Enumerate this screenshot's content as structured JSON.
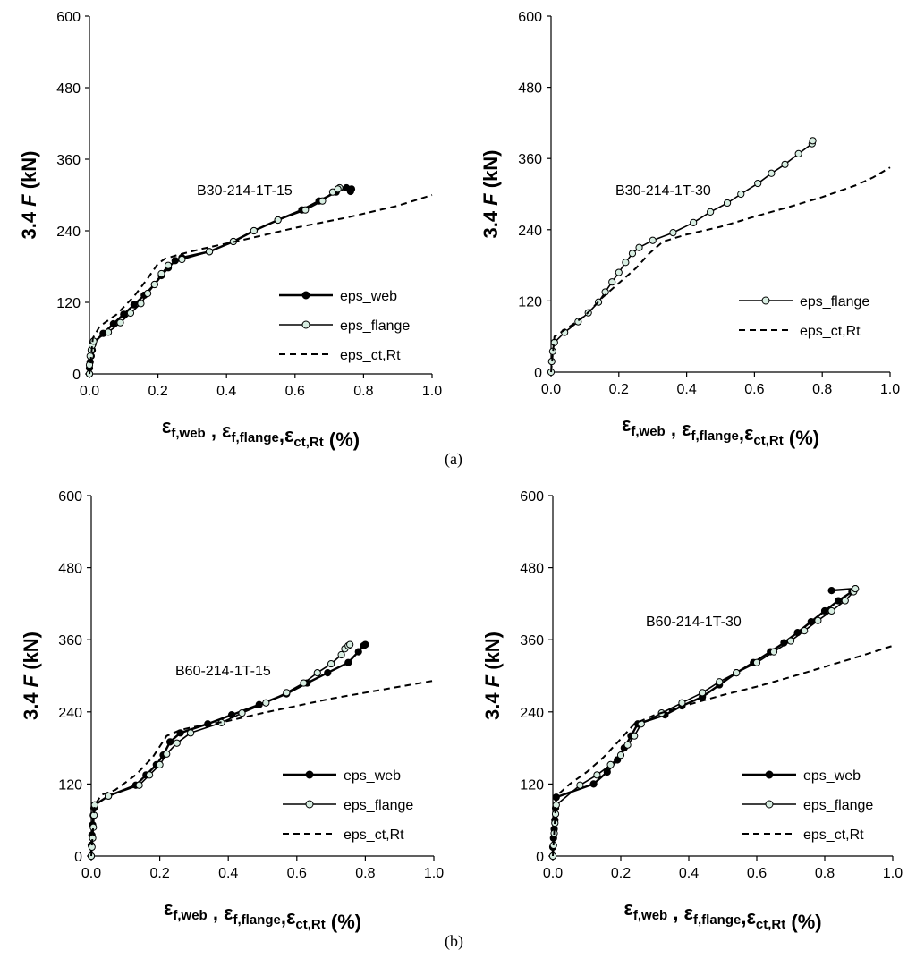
{
  "panel_labels": [
    "(a)",
    "(b)"
  ],
  "chart_data": [
    {
      "type": "line",
      "annotation": "B30-214-1T-15",
      "ylabel": "3.4 F (kN)",
      "xlabel": "ε f,web , ε f,flange , ε ct,Rt (%)",
      "xlim": [
        0,
        1.0
      ],
      "ylim": [
        0,
        600
      ],
      "xticks": [
        "0.0",
        "0.2",
        "0.4",
        "0.6",
        "0.8",
        "1.0"
      ],
      "yticks": [
        "0",
        "120",
        "240",
        "360",
        "480",
        "600"
      ],
      "legend_position": "lower-right",
      "series": [
        {
          "name": "eps_web",
          "style": "solid-black-markers",
          "x": [
            0,
            0,
            0.002,
            0.005,
            0.008,
            0.01,
            0.04,
            0.07,
            0.1,
            0.13,
            0.16,
            0.19,
            0.21,
            0.23,
            0.25,
            0.27,
            0.35,
            0.42,
            0.48,
            0.55,
            0.62,
            0.67,
            0.72,
            0.75,
            0.765,
            0.762
          ],
          "y": [
            0,
            10,
            20,
            30,
            40,
            50,
            68,
            84,
            100,
            116,
            132,
            150,
            165,
            178,
            190,
            195,
            205,
            222,
            240,
            258,
            275,
            290,
            305,
            312,
            310,
            306
          ]
        },
        {
          "name": "eps_flange",
          "style": "solid-light-markers",
          "x": [
            0,
            0,
            0.002,
            0.005,
            0.008,
            0.012,
            0.055,
            0.09,
            0.12,
            0.15,
            0.17,
            0.19,
            0.21,
            0.23,
            0.27,
            0.35,
            0.42,
            0.48,
            0.55,
            0.63,
            0.68,
            0.71,
            0.73,
            0.725
          ],
          "y": [
            0,
            15,
            30,
            40,
            48,
            55,
            70,
            86,
            102,
            118,
            135,
            150,
            168,
            182,
            192,
            205,
            222,
            240,
            258,
            275,
            290,
            305,
            312,
            310
          ]
        },
        {
          "name": "eps_ct,Rt",
          "style": "dashed",
          "x": [
            0,
            0.01,
            0.03,
            0.08,
            0.13,
            0.17,
            0.2,
            0.22,
            0.26,
            0.33,
            0.45,
            0.6,
            0.75,
            0.9,
            1.0
          ],
          "y": [
            0,
            60,
            80,
            100,
            130,
            160,
            185,
            193,
            200,
            210,
            225,
            245,
            262,
            282,
            300
          ]
        }
      ]
    },
    {
      "type": "line",
      "annotation": "B30-214-1T-30",
      "ylabel": "3.4 F (kN)",
      "xlabel": "ε f,web , ε f,flange , ε ct,Rt (%)",
      "xlim": [
        0,
        1.0
      ],
      "ylim": [
        0,
        600
      ],
      "xticks": [
        "0.0",
        "0.2",
        "0.4",
        "0.6",
        "0.8",
        "1.0"
      ],
      "yticks": [
        "0",
        "120",
        "240",
        "360",
        "480",
        "600"
      ],
      "legend_position": "lower-right",
      "series": [
        {
          "name": "eps_flange",
          "style": "solid-light-markers",
          "x": [
            0,
            0.002,
            0.005,
            0.01,
            0.04,
            0.08,
            0.11,
            0.14,
            0.16,
            0.18,
            0.2,
            0.22,
            0.24,
            0.26,
            0.3,
            0.36,
            0.42,
            0.47,
            0.52,
            0.56,
            0.61,
            0.65,
            0.69,
            0.73,
            0.77,
            0.772
          ],
          "y": [
            0,
            18,
            35,
            50,
            67,
            85,
            100,
            118,
            135,
            152,
            168,
            185,
            200,
            210,
            222,
            235,
            252,
            270,
            285,
            300,
            318,
            335,
            350,
            368,
            385,
            390
          ]
        },
        {
          "name": "eps_ct,Rt",
          "style": "dashed",
          "x": [
            0,
            0.01,
            0.05,
            0.1,
            0.15,
            0.2,
            0.25,
            0.29,
            0.33,
            0.4,
            0.5,
            0.6,
            0.7,
            0.8,
            0.9,
            0.95,
            1.0
          ],
          "y": [
            0,
            60,
            75,
            95,
            125,
            150,
            175,
            200,
            220,
            232,
            245,
            262,
            278,
            295,
            315,
            328,
            345
          ]
        }
      ]
    },
    {
      "type": "line",
      "annotation": "B60-214-1T-15",
      "ylabel": "3.4 F (kN)",
      "xlabel": "ε f,web , ε f,flange , ε ct,Rt (%)",
      "xlim": [
        0,
        1.0
      ],
      "ylim": [
        0,
        600
      ],
      "xticks": [
        "0.0",
        "0.2",
        "0.4",
        "0.6",
        "0.8",
        "1.0"
      ],
      "yticks": [
        "0",
        "120",
        "240",
        "360",
        "480",
        "600"
      ],
      "legend_position": "lower-right",
      "series": [
        {
          "name": "eps_web",
          "style": "solid-black-markers",
          "x": [
            0,
            0,
            0.002,
            0.004,
            0.006,
            0.008,
            0.01,
            0.05,
            0.13,
            0.16,
            0.19,
            0.21,
            0.23,
            0.26,
            0.34,
            0.41,
            0.49,
            0.57,
            0.63,
            0.69,
            0.75,
            0.78,
            0.795,
            0.8
          ],
          "y": [
            0,
            18,
            35,
            52,
            68,
            80,
            85,
            100,
            118,
            135,
            152,
            168,
            190,
            205,
            220,
            235,
            252,
            270,
            288,
            305,
            322,
            340,
            350,
            352
          ]
        },
        {
          "name": "eps_flange",
          "style": "solid-light-markers",
          "x": [
            0,
            0.002,
            0.004,
            0.006,
            0.008,
            0.01,
            0.05,
            0.14,
            0.17,
            0.2,
            0.22,
            0.25,
            0.29,
            0.38,
            0.44,
            0.51,
            0.57,
            0.62,
            0.66,
            0.7,
            0.73,
            0.74,
            0.75,
            0.755
          ],
          "y": [
            0,
            15,
            30,
            48,
            68,
            85,
            100,
            118,
            135,
            152,
            170,
            188,
            205,
            222,
            238,
            255,
            272,
            288,
            305,
            320,
            335,
            345,
            350,
            352
          ]
        },
        {
          "name": "eps_ct,Rt",
          "style": "dashed",
          "x": [
            0,
            0.01,
            0.03,
            0.07,
            0.13,
            0.18,
            0.22,
            0.26,
            0.3,
            0.4,
            0.5,
            0.6,
            0.7,
            0.8,
            0.9,
            1.0
          ],
          "y": [
            0,
            85,
            102,
            110,
            135,
            165,
            200,
            210,
            215,
            225,
            238,
            250,
            262,
            272,
            282,
            292
          ]
        }
      ]
    },
    {
      "type": "line",
      "annotation": "B60-214-1T-30",
      "ylabel": "3.4 F (kN)",
      "xlabel": "ε f,web , ε f,flange , ε ct,Rt (%)",
      "xlim": [
        0,
        1.0
      ],
      "ylim": [
        0,
        600
      ],
      "xticks": [
        "0.0",
        "0.2",
        "0.4",
        "0.6",
        "0.8",
        "1.0"
      ],
      "yticks": [
        "0",
        "120",
        "240",
        "360",
        "480",
        "600"
      ],
      "legend_position": "lower-right",
      "series": [
        {
          "name": "eps_web",
          "style": "solid-black-markers",
          "x": [
            0,
            0,
            0.002,
            0.004,
            0.006,
            0.008,
            0.01,
            0.12,
            0.16,
            0.19,
            0.21,
            0.23,
            0.25,
            0.33,
            0.38,
            0.44,
            0.49,
            0.54,
            0.59,
            0.64,
            0.68,
            0.72,
            0.76,
            0.8,
            0.84,
            0.88,
            0.89,
            0.82
          ],
          "y": [
            0,
            15,
            30,
            45,
            60,
            80,
            98,
            120,
            140,
            160,
            180,
            200,
            220,
            235,
            250,
            265,
            285,
            305,
            322,
            340,
            355,
            372,
            390,
            408,
            425,
            440,
            445,
            442
          ]
        },
        {
          "name": "eps_flange",
          "style": "solid-light-markers",
          "x": [
            0,
            0.002,
            0.004,
            0.006,
            0.008,
            0.01,
            0.08,
            0.13,
            0.17,
            0.2,
            0.22,
            0.24,
            0.26,
            0.32,
            0.38,
            0.44,
            0.49,
            0.54,
            0.6,
            0.65,
            0.7,
            0.74,
            0.78,
            0.82,
            0.86,
            0.885,
            0.89
          ],
          "y": [
            0,
            18,
            38,
            55,
            70,
            85,
            118,
            135,
            152,
            168,
            185,
            200,
            220,
            238,
            255,
            272,
            290,
            305,
            322,
            340,
            358,
            375,
            392,
            408,
            425,
            440,
            445
          ]
        },
        {
          "name": "eps_ct,Rt",
          "style": "dashed",
          "x": [
            0,
            0.01,
            0.05,
            0.1,
            0.15,
            0.2,
            0.24,
            0.3,
            0.4,
            0.5,
            0.6,
            0.7,
            0.8,
            0.9,
            1.0
          ],
          "y": [
            0,
            100,
            120,
            140,
            165,
            195,
            220,
            235,
            252,
            268,
            282,
            298,
            315,
            332,
            350
          ]
        }
      ]
    }
  ]
}
